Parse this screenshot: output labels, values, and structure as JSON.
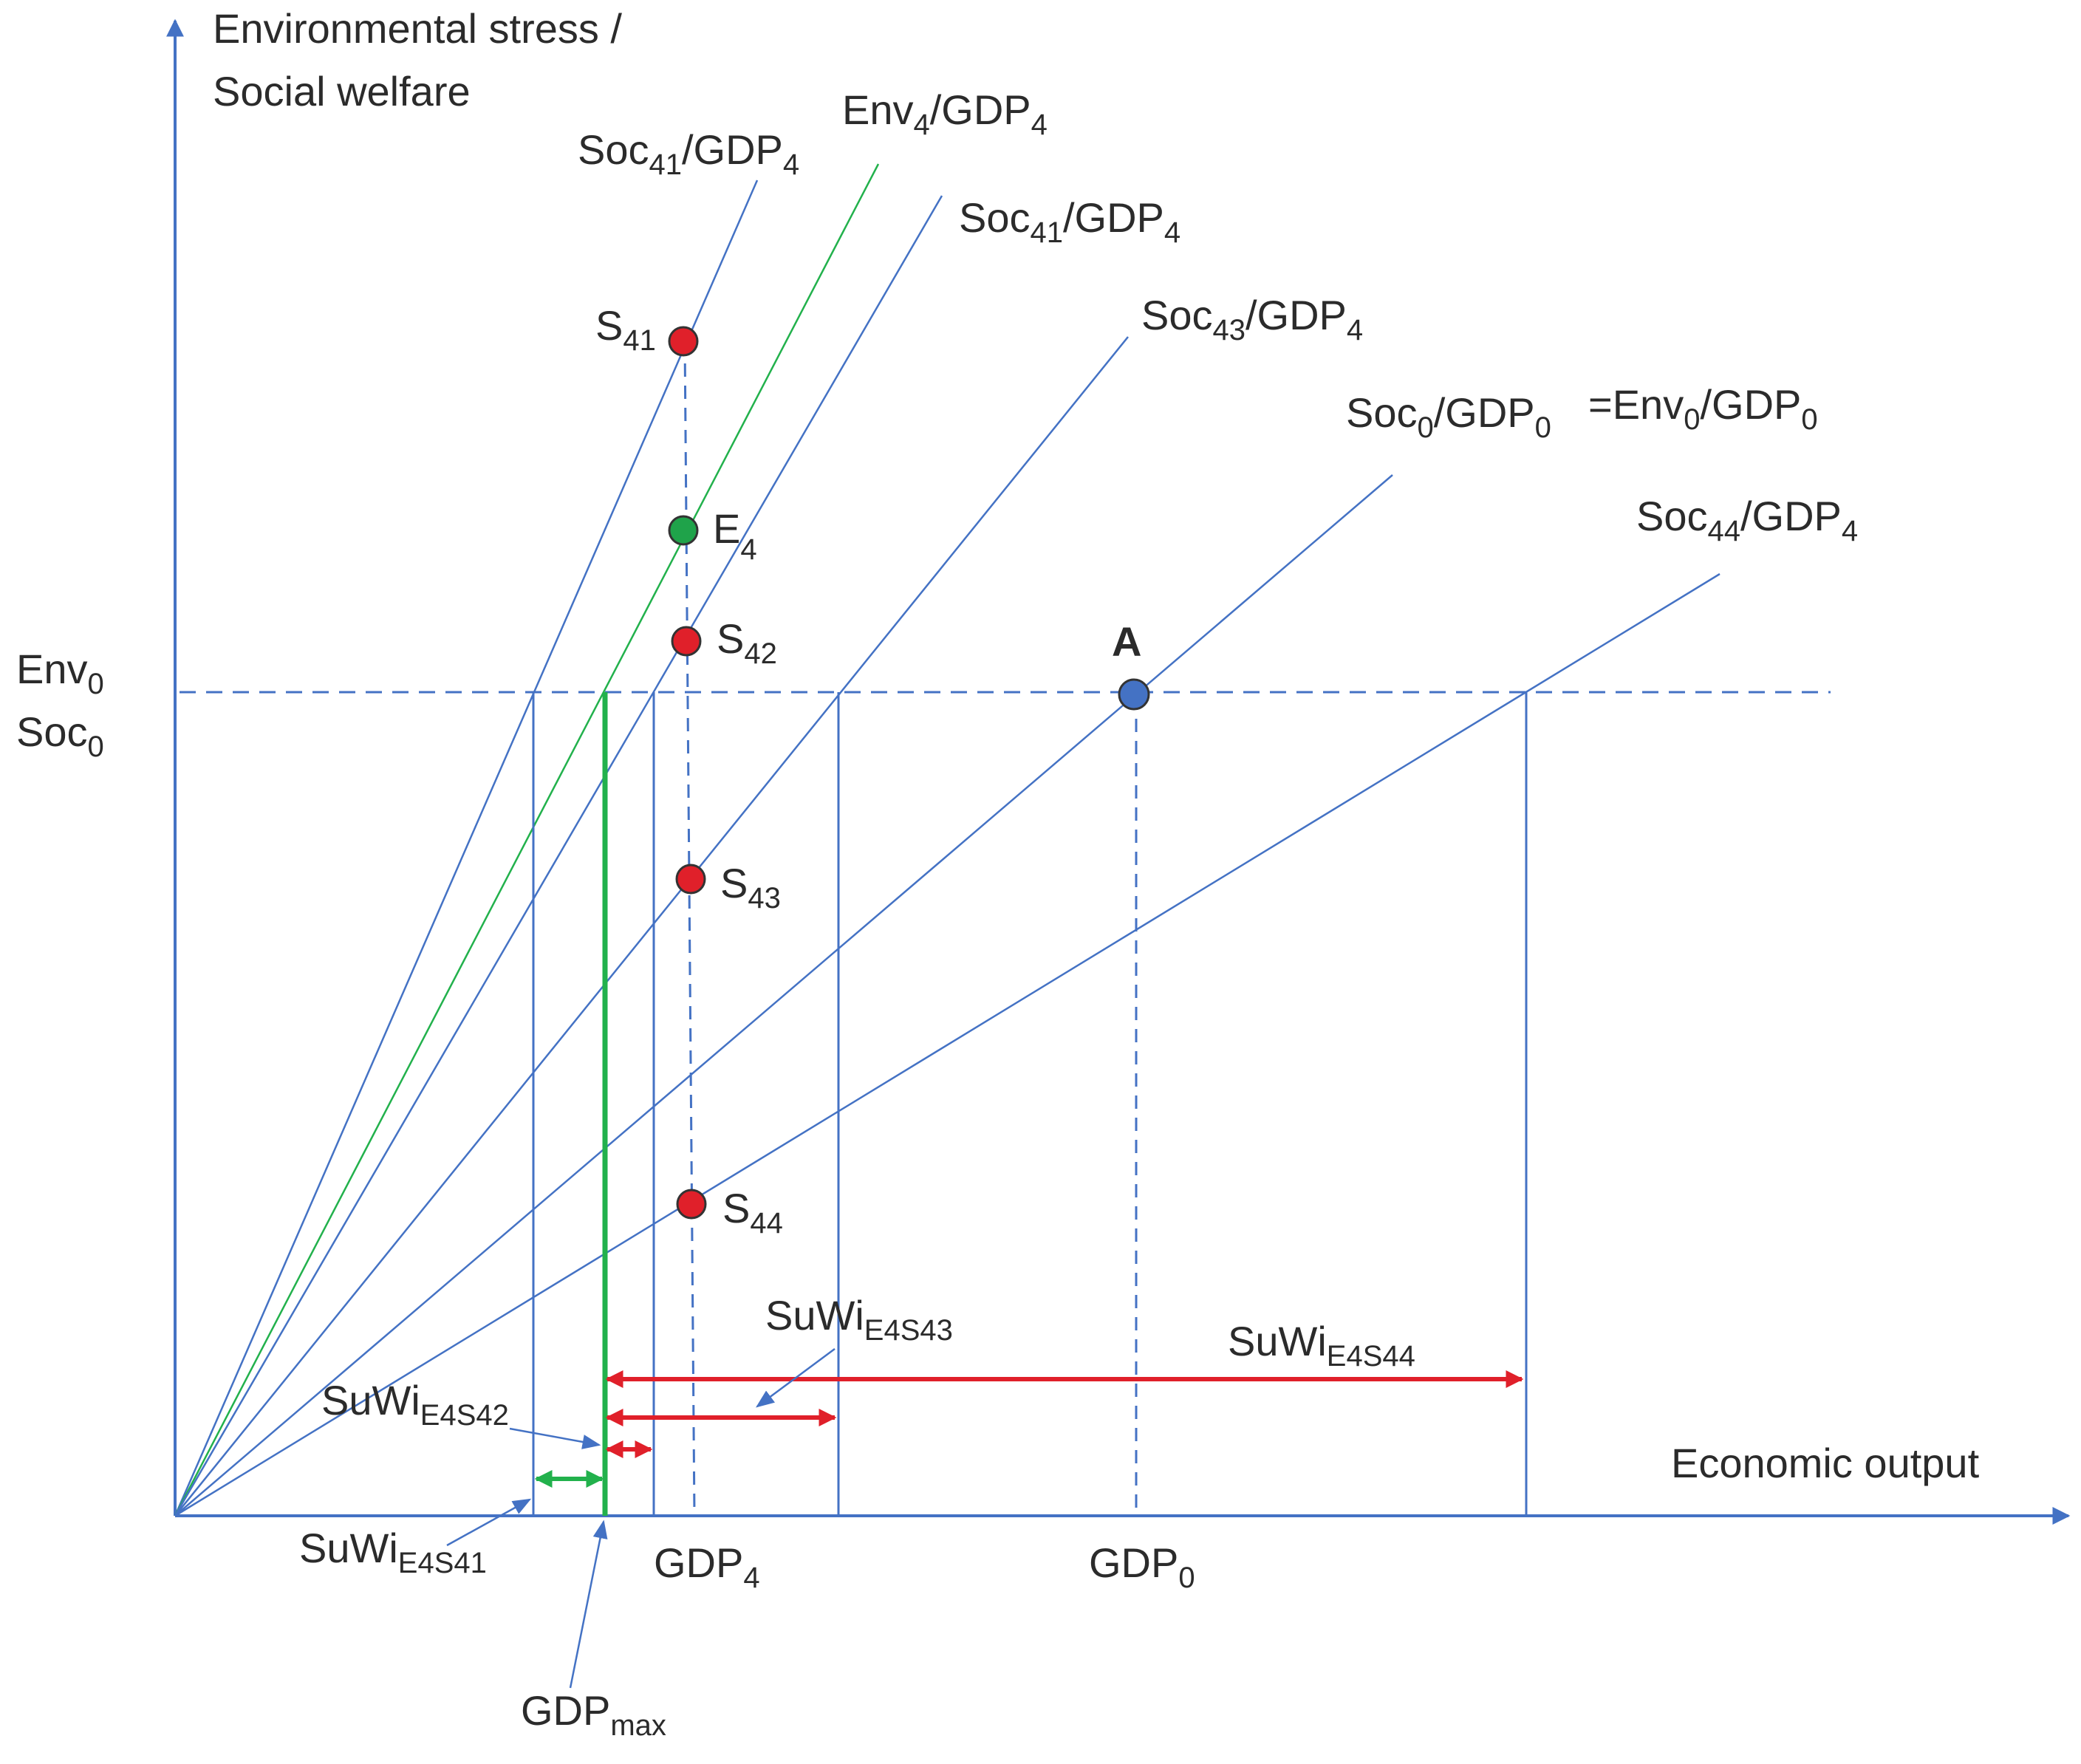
{
  "colors": {
    "axis": "#4472C4",
    "ray": "#4472C4",
    "env_ray": "#22B14C",
    "social_point": "#E0202A",
    "env_point": "#1FA34A",
    "point_A": "#4472C4",
    "arrow_red": "#E0202A",
    "arrow_green": "#22B14C",
    "text": "#2b2b2b"
  },
  "axes": {
    "y_title_line1": "Environmental stress /",
    "y_title_line2": "Social welfare",
    "x_title": "Economic output",
    "y_level_1": {
      "main": "Env",
      "sub": "0"
    },
    "y_level_2": {
      "main": "Soc",
      "sub": "0"
    },
    "x_tick_gdp4": {
      "main": "GDP",
      "sub": "4"
    },
    "x_tick_gdp0": {
      "main": "GDP",
      "sub": "0"
    },
    "gdpmax": {
      "main": "GDP",
      "sub": "max"
    }
  },
  "rays": [
    {
      "id": "soc41a",
      "label": [
        [
          "Soc",
          "41"
        ],
        [
          "/GDP",
          "4"
        ]
      ]
    },
    {
      "id": "env4",
      "label": [
        [
          "Env",
          "4"
        ],
        [
          "/GDP",
          "4"
        ]
      ]
    },
    {
      "id": "soc41b",
      "label": [
        [
          "Soc",
          "41"
        ],
        [
          "/GDP",
          "4"
        ]
      ]
    },
    {
      "id": "soc43",
      "label": [
        [
          "Soc",
          "43"
        ],
        [
          "/GDP",
          "4"
        ]
      ]
    },
    {
      "id": "soc0",
      "label": [
        [
          "Soc",
          "0"
        ],
        [
          "/GDP",
          "0"
        ]
      ],
      "label_extra": [
        [
          "=Env",
          "0"
        ],
        [
          "/GDP",
          "0"
        ]
      ]
    },
    {
      "id": "soc44",
      "label": [
        [
          "Soc",
          "44"
        ],
        [
          "/GDP",
          "4"
        ]
      ]
    }
  ],
  "points": [
    {
      "id": "S41",
      "main": "S",
      "sub": "41",
      "kind": "social"
    },
    {
      "id": "E4",
      "main": "E",
      "sub": "4",
      "kind": "env"
    },
    {
      "id": "S42",
      "main": "S",
      "sub": "42",
      "kind": "social"
    },
    {
      "id": "S43",
      "main": "S",
      "sub": "43",
      "kind": "social"
    },
    {
      "id": "S44",
      "main": "S",
      "sub": "44",
      "kind": "social"
    },
    {
      "id": "A",
      "main": "A",
      "sub": "",
      "kind": "ref"
    }
  ],
  "suwi": [
    {
      "id": "E4S41",
      "main": "SuWi",
      "sub": "E4S41"
    },
    {
      "id": "E4S42",
      "main": "SuWi",
      "sub": "E4S42"
    },
    {
      "id": "E4S43",
      "main": "SuWi",
      "sub": "E4S43"
    },
    {
      "id": "E4S44",
      "main": "SuWi",
      "sub": "E4S44"
    }
  ]
}
